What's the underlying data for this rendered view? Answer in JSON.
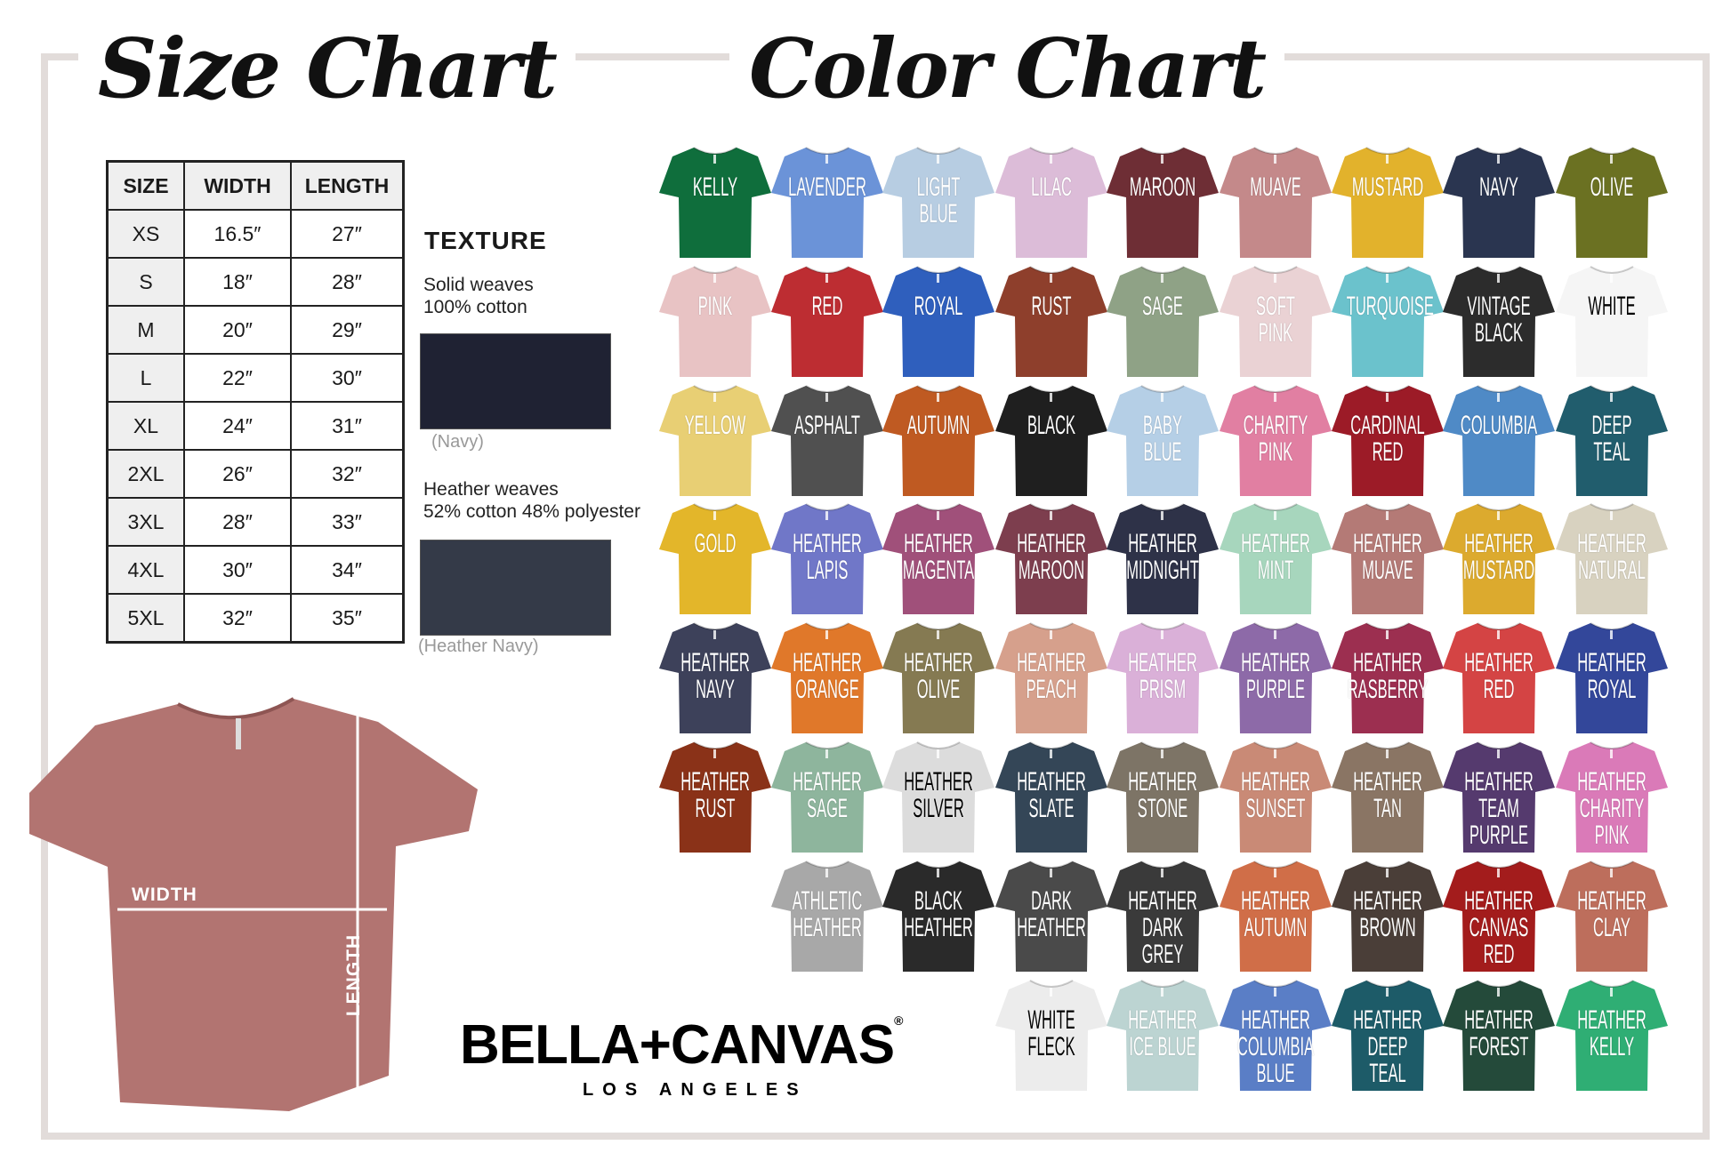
{
  "size_chart": {
    "title": "Size Chart",
    "headers": [
      "SIZE",
      "WIDTH",
      "LENGTH"
    ],
    "rows": [
      [
        "XS",
        "16.5″",
        "27″"
      ],
      [
        "S",
        "18″",
        "28″"
      ],
      [
        "M",
        "20″",
        "29″"
      ],
      [
        "L",
        "22″",
        "30″"
      ],
      [
        "XL",
        "24″",
        "31″"
      ],
      [
        "2XL",
        "26″",
        "32″"
      ],
      [
        "3XL",
        "28″",
        "33″"
      ],
      [
        "4XL",
        "30″",
        "34″"
      ],
      [
        "5XL",
        "32″",
        "35″"
      ]
    ]
  },
  "texture": {
    "heading": "TEXTURE",
    "solid": {
      "line1": "Solid weaves",
      "line2": "100% cotton",
      "caption": "(Navy)",
      "color": "#1f2233"
    },
    "heather": {
      "line1": "Heather weaves",
      "line2": "52% cotton 48% polyester",
      "caption": "(Heather Navy)",
      "color": "#343a48"
    }
  },
  "diagram": {
    "width_label": "WIDTH",
    "length_label": "LENGTH",
    "shirt_color": "#b27471"
  },
  "brand": {
    "name": "BELLA+CANVAS",
    "registered": "®",
    "location": "LOS ANGELES"
  },
  "color_chart": {
    "title": "Color Chart",
    "rows": [
      {
        "offset": 0,
        "items": [
          {
            "name": "KELLY",
            "color": "#0f6e3c"
          },
          {
            "name": "LAVENDER",
            "color": "#6b93d8"
          },
          {
            "name": "LIGHT\nBLUE",
            "color": "#b7cde2"
          },
          {
            "name": "LILAC",
            "color": "#dcbcd8"
          },
          {
            "name": "MAROON",
            "color": "#6e2e35"
          },
          {
            "name": "MUAVE",
            "color": "#c4898a"
          },
          {
            "name": "MUSTARD",
            "color": "#e2b22c"
          },
          {
            "name": "NAVY",
            "color": "#2a3550"
          },
          {
            "name": "OLIVE",
            "color": "#6b7122"
          }
        ]
      },
      {
        "offset": 0,
        "items": [
          {
            "name": "PINK",
            "color": "#e8c3c4"
          },
          {
            "name": "RED",
            "color": "#bd2d32"
          },
          {
            "name": "ROYAL",
            "color": "#2f5fbd"
          },
          {
            "name": "RUST",
            "color": "#8e3f2c"
          },
          {
            "name": "SAGE",
            "color": "#8fa286"
          },
          {
            "name": "SOFT\nPINK",
            "color": "#ead2d4"
          },
          {
            "name": "TURQUOISE",
            "color": "#6bc2cc"
          },
          {
            "name": "VINTAGE\nBLACK",
            "color": "#2c2c2c"
          },
          {
            "name": "WHITE",
            "color": "#f5f5f5",
            "dark": true
          }
        ]
      },
      {
        "offset": 0,
        "items": [
          {
            "name": "YELLOW",
            "color": "#e8cf74"
          },
          {
            "name": "ASPHALT",
            "color": "#505050"
          },
          {
            "name": "AUTUMN",
            "color": "#bf5a22"
          },
          {
            "name": "BLACK",
            "color": "#1f1f1f"
          },
          {
            "name": "BABY\nBLUE",
            "color": "#b5cfe6"
          },
          {
            "name": "CHARITY\nPINK",
            "color": "#e17fa2"
          },
          {
            "name": "CARDINAL\nRED",
            "color": "#9c1b27"
          },
          {
            "name": "COLUMBIA",
            "color": "#4f8ac6"
          },
          {
            "name": "DEEP\nTEAL",
            "color": "#215d6d"
          }
        ]
      },
      {
        "offset": 0,
        "items": [
          {
            "name": "GOLD",
            "color": "#e3b62a"
          },
          {
            "name": "HEATHER\nLAPIS",
            "color": "#7077c8"
          },
          {
            "name": "HEATHER\nMAGENTA",
            "color": "#a0507a"
          },
          {
            "name": "HEATHER\nMAROON",
            "color": "#7d3e4e"
          },
          {
            "name": "HEATHER\nMIDNIGHT",
            "color": "#2e3248"
          },
          {
            "name": "HEATHER\nMINT",
            "color": "#a7d6bd"
          },
          {
            "name": "HEATHER\nMUAVE",
            "color": "#b47a76"
          },
          {
            "name": "HEATHER\nMUSTARD",
            "color": "#dcaa2e"
          },
          {
            "name": "HEATHER\nNATURAL",
            "color": "#d8d2c0"
          }
        ]
      },
      {
        "offset": 0,
        "items": [
          {
            "name": "HEATHER\nNAVY",
            "color": "#3d415a"
          },
          {
            "name": "HEATHER\nORANGE",
            "color": "#e0782a"
          },
          {
            "name": "HEATHER\nOLIVE",
            "color": "#857a52"
          },
          {
            "name": "HEATHER\nPEACH",
            "color": "#d6a08c"
          },
          {
            "name": "HEATHER\nPRISM",
            "color": "#dab0d8"
          },
          {
            "name": "HEATHER\nPURPLE",
            "color": "#8d6aa8"
          },
          {
            "name": "HEATHER\nRASBERRY",
            "color": "#9c2f50"
          },
          {
            "name": "HEATHER\nRED",
            "color": "#d44444"
          },
          {
            "name": "HEATHER\nROYAL",
            "color": "#33479a"
          }
        ]
      },
      {
        "offset": 0,
        "items": [
          {
            "name": "HEATHER\nRUST",
            "color": "#8a3218"
          },
          {
            "name": "HEATHER\nSAGE",
            "color": "#8eb59d"
          },
          {
            "name": "HEATHER\nSILVER",
            "color": "#dcdcdc",
            "dark": true
          },
          {
            "name": "HEATHER\nSLATE",
            "color": "#344657"
          },
          {
            "name": "HEATHER\nSTONE",
            "color": "#7d7466"
          },
          {
            "name": "HEATHER\nSUNSET",
            "color": "#c98a76"
          },
          {
            "name": "HEATHER\nTAN",
            "color": "#8a7564"
          },
          {
            "name": "HEATHER\nTEAM\nPURPLE",
            "color": "#553a6e"
          },
          {
            "name": "HEATHER\nCHARITY\nPINK",
            "color": "#da7ab8"
          }
        ]
      },
      {
        "offset": 1,
        "items": [
          {
            "name": "ATHLETIC\nHEATHER",
            "color": "#a8a8a8"
          },
          {
            "name": "BLACK\nHEATHER",
            "color": "#2a2a2a"
          },
          {
            "name": "DARK\nHEATHER",
            "color": "#4a4a4a"
          },
          {
            "name": "HEATHER\nDARK GREY",
            "color": "#3a3a3a"
          },
          {
            "name": "HEATHER\nAUTUMN",
            "color": "#d06e48"
          },
          {
            "name": "HEATHER\nBROWN",
            "color": "#4a3e38"
          },
          {
            "name": "HEATHER\nCANVAS\nRED",
            "color": "#a31c1c"
          },
          {
            "name": "HEATHER\nCLAY",
            "color": "#bd6e5c"
          }
        ]
      },
      {
        "offset": 3,
        "items": [
          {
            "name": "WHITE\nFLECK",
            "color": "#ececec",
            "dark": true
          },
          {
            "name": "HEATHER\nICE BLUE",
            "color": "#bcd4d2"
          },
          {
            "name": "HEATHER\nCOLUMBIA\nBLUE",
            "color": "#5a7ec6"
          },
          {
            "name": "HEATHER\nDEEP\nTEAL",
            "color": "#1d5b68"
          },
          {
            "name": "HEATHER\nFOREST",
            "color": "#244a3a"
          },
          {
            "name": "HEATHER\nKELLY",
            "color": "#2fae74"
          }
        ]
      }
    ]
  }
}
